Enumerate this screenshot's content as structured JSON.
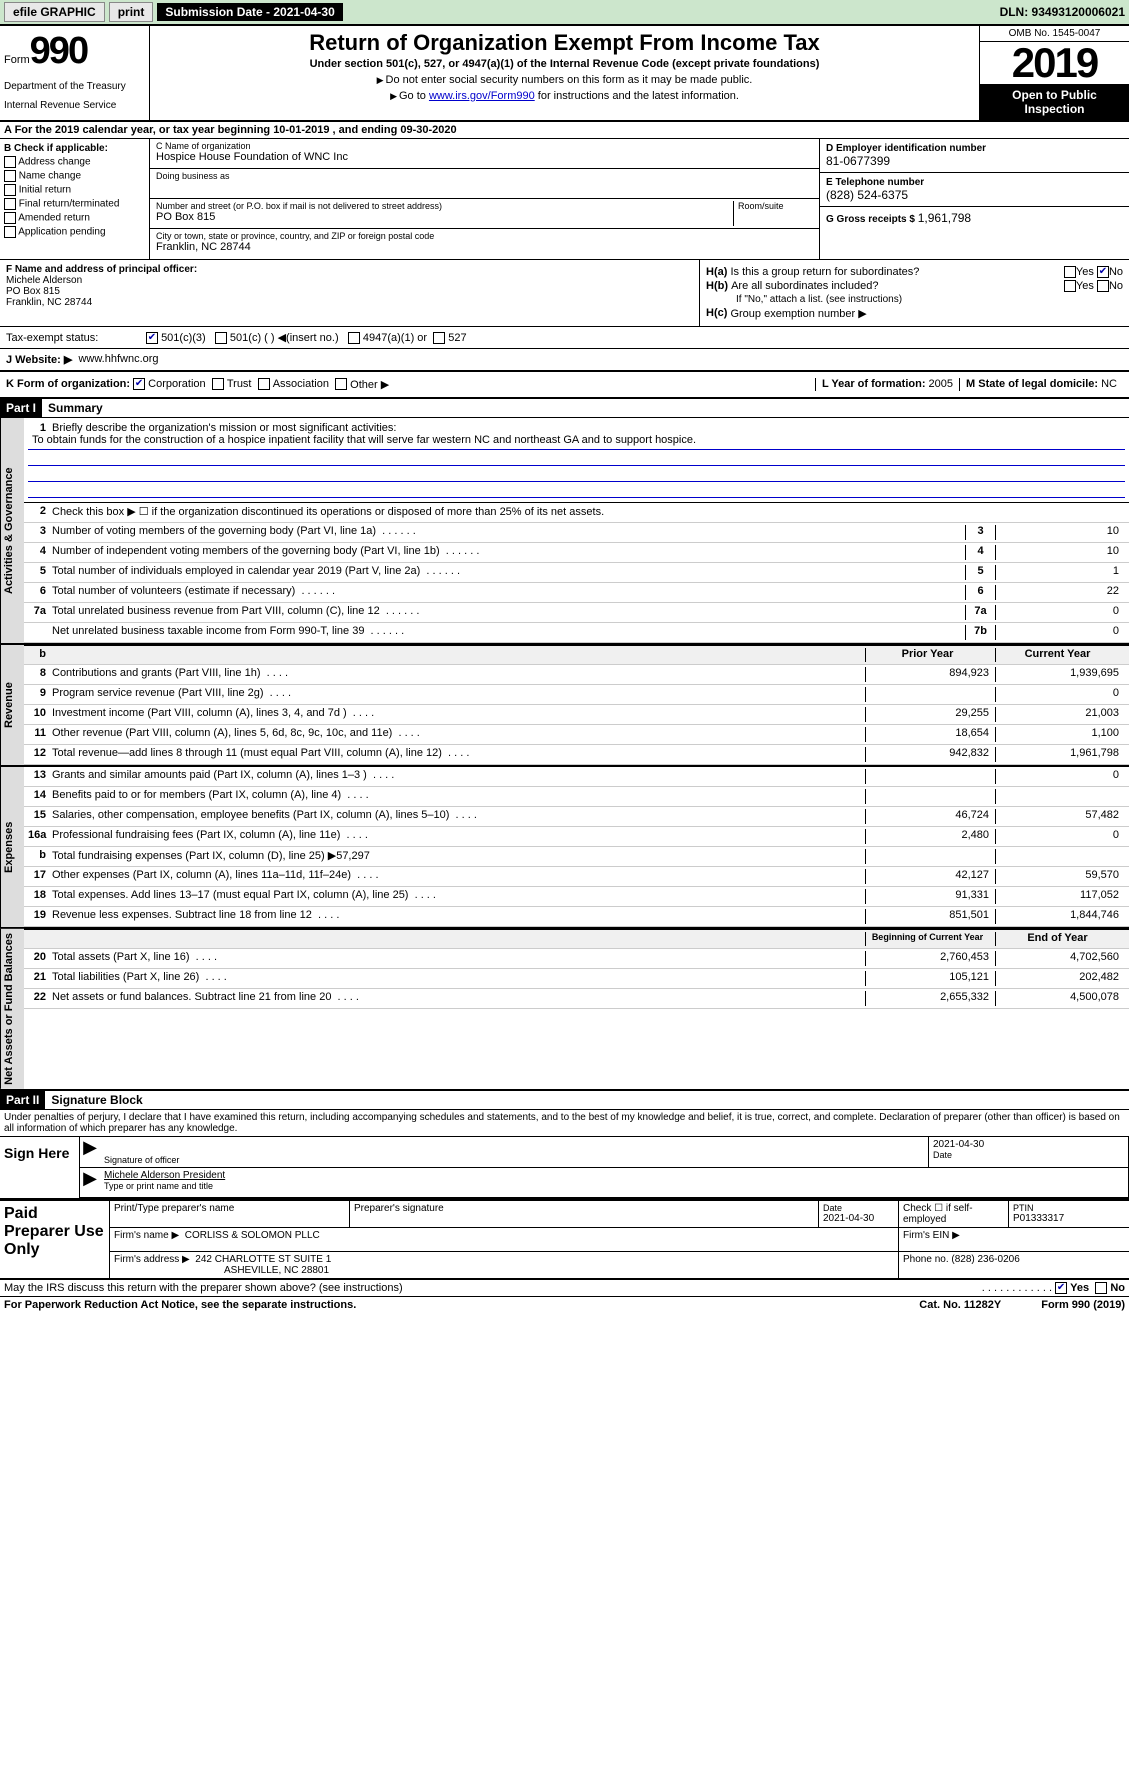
{
  "topbar": {
    "efile": "efile GRAPHIC",
    "print": "print",
    "submission_label": "Submission Date - 2021-04-30",
    "dln": "DLN: 93493120006021"
  },
  "header": {
    "form_prefix": "Form",
    "form_number": "990",
    "dept1": "Department of the Treasury",
    "dept2": "Internal Revenue Service",
    "title": "Return of Organization Exempt From Income Tax",
    "subtitle": "Under section 501(c), 527, or 4947(a)(1) of the Internal Revenue Code (except private foundations)",
    "instr1": "Do not enter social security numbers on this form as it may be made public.",
    "instr2_pre": "Go to ",
    "instr2_link": "www.irs.gov/Form990",
    "instr2_post": " for instructions and the latest information.",
    "omb": "OMB No. 1545-0047",
    "year": "2019",
    "open_public": "Open to Public Inspection"
  },
  "row_a": "A For the 2019 calendar year, or tax year beginning 10-01-2019    , and ending 09-30-2020",
  "col_b": {
    "header": "B Check if applicable:",
    "items": [
      "Address change",
      "Name change",
      "Initial return",
      "Final return/terminated",
      "Amended return",
      "Application pending"
    ]
  },
  "col_c": {
    "name_lbl": "C Name of organization",
    "name_val": "Hospice House Foundation of WNC Inc",
    "dba_lbl": "Doing business as",
    "dba_val": "",
    "addr_lbl": "Number and street (or P.O. box if mail is not delivered to street address)",
    "room_lbl": "Room/suite",
    "addr_val": "PO Box 815",
    "city_lbl": "City or town, state or province, country, and ZIP or foreign postal code",
    "city_val": "Franklin, NC  28744"
  },
  "col_de": {
    "d_lbl": "D Employer identification number",
    "d_val": "81-0677399",
    "e_lbl": "E Telephone number",
    "e_val": "(828) 524-6375",
    "g_lbl": "G Gross receipts $ ",
    "g_val": "1,961,798"
  },
  "col_f": {
    "lbl": "F Name and address of principal officer:",
    "name": "Michele Alderson",
    "addr1": "PO Box 815",
    "addr2": "Franklin, NC  28744"
  },
  "col_h": {
    "ha_lbl": "H(a)",
    "ha_text": "Is this a group return for subordinates?",
    "hb_lbl": "H(b)",
    "hb_text": "Are all subordinates included?",
    "hb_note": "If \"No,\" attach a list. (see instructions)",
    "hc_lbl": "H(c)",
    "hc_text": "Group exemption number ▶",
    "yes": "Yes",
    "no": "No"
  },
  "tax_status": {
    "lbl": "Tax-exempt status:",
    "opt1": "501(c)(3)",
    "opt2": "501(c) (   ) ◀(insert no.)",
    "opt3": "4947(a)(1) or",
    "opt4": "527"
  },
  "website": {
    "lbl": "J  Website: ▶",
    "val": "www.hhfwnc.org"
  },
  "k_row": {
    "k_lbl": "K Form of organization:",
    "corp": "Corporation",
    "trust": "Trust",
    "assoc": "Association",
    "other": "Other ▶",
    "l_lbl": "L Year of formation: ",
    "l_val": "2005",
    "m_lbl": "M State of legal domicile: ",
    "m_val": "NC"
  },
  "part1": {
    "hdr": "Part I",
    "title": "Summary"
  },
  "summary": {
    "vtabs": [
      "Activities & Governance",
      "Revenue",
      "Expenses",
      "Net Assets or Fund Balances"
    ],
    "line1_lbl": "1",
    "line1_text": "Briefly describe the organization's mission or most significant activities:",
    "mission": "To obtain funds for the construction of a hospice inpatient facility that will serve far western NC and northeast GA and to support hospice.",
    "line2_lbl": "2",
    "line2_text": "Check this box ▶ ☐  if the organization discontinued its operations or disposed of more than 25% of its net assets.",
    "lines_gov": [
      {
        "n": "3",
        "t": "Number of voting members of the governing body (Part VI, line 1a)",
        "box": "3",
        "v": "10"
      },
      {
        "n": "4",
        "t": "Number of independent voting members of the governing body (Part VI, line 1b)",
        "box": "4",
        "v": "10"
      },
      {
        "n": "5",
        "t": "Total number of individuals employed in calendar year 2019 (Part V, line 2a)",
        "box": "5",
        "v": "1"
      },
      {
        "n": "6",
        "t": "Total number of volunteers (estimate if necessary)",
        "box": "6",
        "v": "22"
      },
      {
        "n": "7a",
        "t": "Total unrelated business revenue from Part VIII, column (C), line 12",
        "box": "7a",
        "v": "0"
      },
      {
        "n": "",
        "t": "Net unrelated business taxable income from Form 990-T, line 39",
        "box": "7b",
        "v": "0"
      }
    ],
    "col_hdr_prior": "Prior Year",
    "col_hdr_current": "Current Year",
    "lines_rev": [
      {
        "n": "8",
        "t": "Contributions and grants (Part VIII, line 1h)",
        "p": "894,923",
        "c": "1,939,695"
      },
      {
        "n": "9",
        "t": "Program service revenue (Part VIII, line 2g)",
        "p": "",
        "c": "0"
      },
      {
        "n": "10",
        "t": "Investment income (Part VIII, column (A), lines 3, 4, and 7d )",
        "p": "29,255",
        "c": "21,003"
      },
      {
        "n": "11",
        "t": "Other revenue (Part VIII, column (A), lines 5, 6d, 8c, 9c, 10c, and 11e)",
        "p": "18,654",
        "c": "1,100"
      },
      {
        "n": "12",
        "t": "Total revenue—add lines 8 through 11 (must equal Part VIII, column (A), line 12)",
        "p": "942,832",
        "c": "1,961,798"
      }
    ],
    "lines_exp": [
      {
        "n": "13",
        "t": "Grants and similar amounts paid (Part IX, column (A), lines 1–3 )",
        "p": "",
        "c": "0"
      },
      {
        "n": "14",
        "t": "Benefits paid to or for members (Part IX, column (A), line 4)",
        "p": "",
        "c": ""
      },
      {
        "n": "15",
        "t": "Salaries, other compensation, employee benefits (Part IX, column (A), lines 5–10)",
        "p": "46,724",
        "c": "57,482"
      },
      {
        "n": "16a",
        "t": "Professional fundraising fees (Part IX, column (A), line 11e)",
        "p": "2,480",
        "c": "0"
      },
      {
        "n": "b",
        "t": "Total fundraising expenses (Part IX, column (D), line 25) ▶57,297",
        "p": "",
        "c": ""
      },
      {
        "n": "17",
        "t": "Other expenses (Part IX, column (A), lines 11a–11d, 11f–24e)",
        "p": "42,127",
        "c": "59,570"
      },
      {
        "n": "18",
        "t": "Total expenses. Add lines 13–17 (must equal Part IX, column (A), line 25)",
        "p": "91,331",
        "c": "117,052"
      },
      {
        "n": "19",
        "t": "Revenue less expenses. Subtract line 18 from line 12",
        "p": "851,501",
        "c": "1,844,746"
      }
    ],
    "col_hdr_begin": "Beginning of Current Year",
    "col_hdr_end": "End of Year",
    "lines_net": [
      {
        "n": "20",
        "t": "Total assets (Part X, line 16)",
        "p": "2,760,453",
        "c": "4,702,560"
      },
      {
        "n": "21",
        "t": "Total liabilities (Part X, line 26)",
        "p": "105,121",
        "c": "202,482"
      },
      {
        "n": "22",
        "t": "Net assets or fund balances. Subtract line 21 from line 20",
        "p": "2,655,332",
        "c": "4,500,078"
      }
    ]
  },
  "part2": {
    "hdr": "Part II",
    "title": "Signature Block"
  },
  "sig": {
    "decl": "Under penalties of perjury, I declare that I have examined this return, including accompanying schedules and statements, and to the best of my knowledge and belief, it is true, correct, and complete. Declaration of preparer (other than officer) is based on all information of which preparer has any knowledge.",
    "sign_here": "Sign Here",
    "sig_officer_lbl": "Signature of officer",
    "date_lbl": "Date",
    "date_val": "2021-04-30",
    "name_title": "Michele Alderson  President",
    "name_title_lbl": "Type or print name and title"
  },
  "paid": {
    "hdr": "Paid Preparer Use Only",
    "print_name_lbl": "Print/Type preparer's name",
    "prep_sig_lbl": "Preparer's signature",
    "date_lbl": "Date",
    "date_val": "2021-04-30",
    "check_lbl": "Check ☐ if self-employed",
    "ptin_lbl": "PTIN",
    "ptin_val": "P01333317",
    "firm_name_lbl": "Firm's name    ▶",
    "firm_name_val": "CORLISS & SOLOMON PLLC",
    "firm_ein_lbl": "Firm's EIN ▶",
    "firm_addr_lbl": "Firm's address ▶",
    "firm_addr_val1": "242 CHARLOTTE ST SUITE 1",
    "firm_addr_val2": "ASHEVILLE, NC  28801",
    "phone_lbl": "Phone no. ",
    "phone_val": "(828) 236-0206"
  },
  "footer": {
    "discuss": "May the IRS discuss this return with the preparer shown above? (see instructions)",
    "yes": "Yes",
    "no": "No",
    "paperwork": "For Paperwork Reduction Act Notice, see the separate instructions.",
    "cat": "Cat. No. 11282Y",
    "form": "Form 990 (2019)"
  }
}
